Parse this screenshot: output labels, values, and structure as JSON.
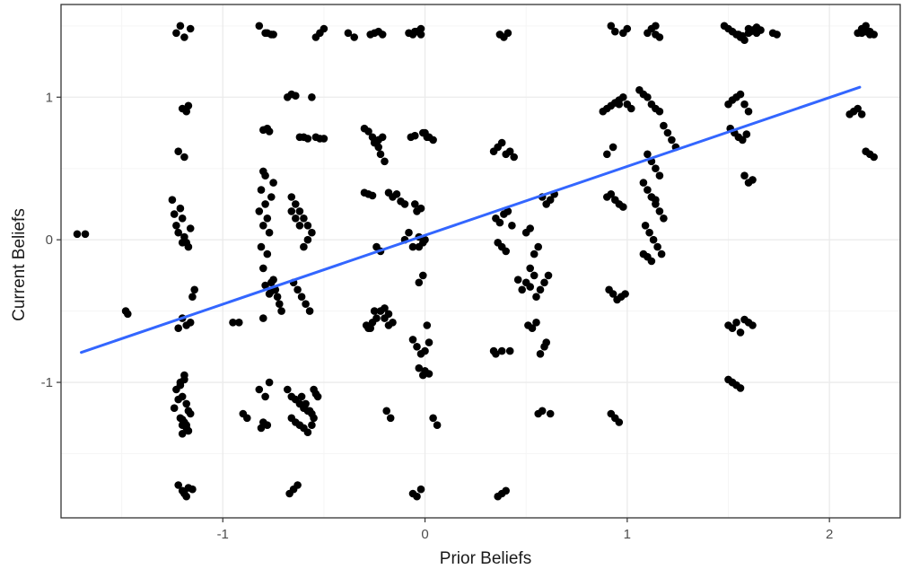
{
  "chart_data": {
    "type": "scatter",
    "title": "",
    "xlabel": "Prior Beliefs",
    "ylabel": "Current Beliefs",
    "xlim": [
      -1.8,
      2.35
    ],
    "ylim": [
      -1.95,
      1.65
    ],
    "x_ticks": [
      -1,
      0,
      1,
      2
    ],
    "x_tick_labels": [
      "-1",
      "0",
      "1",
      "2"
    ],
    "y_ticks": [
      -1,
      0,
      1
    ],
    "y_tick_labels": [
      "-1",
      "0",
      "1"
    ],
    "grid": true,
    "legend": "none",
    "colors": {
      "points": "#000000",
      "fit_line": "#3366ff",
      "grid_major": "#ebebeb",
      "grid_minor": "#f5f5f5",
      "panel_border": "#333333"
    },
    "series": [
      {
        "kind": "points",
        "x": [
          -1.72,
          -1.68,
          -1.48,
          -1.47,
          -1.25,
          -1.24,
          -1.23,
          -1.22,
          -1.21,
          -1.2,
          -1.19,
          -1.18,
          -1.17,
          -1.16,
          -1.15,
          -1.14,
          -1.2,
          -1.18,
          -1.22,
          -1.16,
          -1.19,
          -1.21,
          -1.23,
          -1.2,
          -1.18,
          -1.17,
          -1.21,
          -1.19,
          -1.2,
          -1.18,
          -1.22,
          -1.24,
          -1.16,
          -1.2,
          -1.18,
          -1.19,
          -1.21,
          -1.17,
          -1.2,
          -1.15,
          -1.22,
          -1.19,
          -1.18,
          -1.2,
          -1.17,
          -1.21,
          -1.23,
          -1.19,
          -1.16,
          -1.2,
          -1.18,
          -1.22,
          -1.19,
          -1.17,
          -1.2,
          -0.95,
          -0.92,
          -0.9,
          -0.88,
          -0.82,
          -0.79,
          -0.78,
          -0.8,
          -0.77,
          -0.81,
          -0.76,
          -0.79,
          -0.82,
          -0.78,
          -0.8,
          -0.77,
          -0.75,
          -0.79,
          -0.81,
          -0.78,
          -0.8,
          -0.76,
          -0.74,
          -0.73,
          -0.72,
          -0.71,
          -0.8,
          -0.78,
          -0.76,
          -0.75,
          -0.82,
          -0.79,
          -0.77,
          -0.8,
          -0.78,
          -0.81,
          -0.76,
          -0.79,
          -0.77,
          -0.75,
          -0.8,
          -0.68,
          -0.66,
          -0.64,
          -0.62,
          -0.6,
          -0.58,
          -0.56,
          -0.54,
          -0.52,
          -0.5,
          -0.66,
          -0.64,
          -0.62,
          -0.6,
          -0.58,
          -0.65,
          -0.63,
          -0.61,
          -0.59,
          -0.57,
          -0.68,
          -0.66,
          -0.64,
          -0.62,
          -0.6,
          -0.58,
          -0.56,
          -0.55,
          -0.54,
          -0.53,
          -0.66,
          -0.64,
          -0.62,
          -0.6,
          -0.58,
          -0.56,
          -0.55,
          -0.57,
          -0.59,
          -0.61,
          -0.63,
          -0.65,
          -0.67,
          -0.54,
          -0.52,
          -0.5,
          -0.56,
          -0.58,
          -0.6,
          -0.62,
          -0.64,
          -0.66,
          -0.38,
          -0.35,
          -0.3,
          -0.28,
          -0.26,
          -0.25,
          -0.23,
          -0.22,
          -0.2,
          -0.18,
          -0.16,
          -0.14,
          -0.12,
          -0.1,
          -0.28,
          -0.26,
          -0.24,
          -0.22,
          -0.2,
          -0.18,
          -0.27,
          -0.25,
          -0.23,
          -0.21,
          -0.19,
          -0.17,
          -0.3,
          -0.28,
          -0.26,
          -0.24,
          -0.22,
          -0.2,
          -0.18,
          -0.16,
          -0.29,
          -0.27,
          -0.25,
          -0.23,
          -0.21,
          -0.08,
          -0.06,
          -0.04,
          -0.02,
          0.0,
          0.02,
          0.04,
          -0.07,
          -0.05,
          -0.03,
          -0.01,
          0.01,
          -0.06,
          -0.04,
          -0.02,
          0.0,
          0.02,
          -0.1,
          -0.08,
          -0.06,
          -0.04,
          -0.02,
          -0.05,
          -0.03,
          -0.01,
          0.0,
          0.02,
          0.04,
          0.06,
          -0.02,
          -0.04,
          -0.06,
          -0.01,
          0.01,
          -0.03,
          -0.05,
          -0.02,
          0.0,
          -0.03,
          -0.01,
          0.34,
          0.36,
          0.38,
          0.4,
          0.42,
          0.44,
          0.35,
          0.37,
          0.39,
          0.41,
          0.43,
          0.38,
          0.36,
          0.4,
          0.34,
          0.38,
          0.42,
          0.36,
          0.38,
          0.4,
          0.37,
          0.39,
          0.41,
          0.35,
          0.5,
          0.52,
          0.54,
          0.56,
          0.58,
          0.6,
          0.62,
          0.64,
          0.55,
          0.57,
          0.59,
          0.61,
          0.51,
          0.53,
          0.55,
          0.57,
          0.59,
          0.6,
          0.62,
          0.56,
          0.58,
          0.52,
          0.54,
          0.5,
          0.48,
          0.46,
          0.52,
          0.88,
          0.9,
          0.92,
          0.94,
          0.96,
          0.98,
          1.0,
          1.02,
          0.9,
          0.92,
          0.94,
          0.96,
          0.98,
          0.91,
          0.93,
          0.95,
          0.97,
          0.99,
          0.92,
          0.94,
          0.96,
          0.98,
          1.0,
          0.92,
          0.94,
          0.96,
          0.9,
          0.93,
          1.06,
          1.08,
          1.1,
          1.12,
          1.14,
          1.16,
          1.18,
          1.2,
          1.22,
          1.24,
          1.08,
          1.1,
          1.12,
          1.14,
          1.16,
          1.18,
          1.09,
          1.11,
          1.13,
          1.15,
          1.17,
          1.1,
          1.12,
          1.14,
          1.16,
          1.1,
          1.12,
          1.14,
          1.08,
          1.1,
          1.12,
          1.14,
          1.16,
          1.12,
          1.14,
          1.48,
          1.5,
          1.52,
          1.54,
          1.56,
          1.58,
          1.6,
          1.62,
          1.64,
          1.5,
          1.52,
          1.54,
          1.56,
          1.58,
          1.6,
          1.51,
          1.53,
          1.55,
          1.57,
          1.59,
          1.5,
          1.52,
          1.54,
          1.56,
          1.58,
          1.6,
          1.62,
          1.52,
          1.54,
          1.56,
          1.58,
          1.6,
          1.62,
          1.64,
          1.66,
          1.55,
          1.57,
          1.61,
          1.6,
          1.5,
          1.52,
          1.72,
          1.74,
          2.1,
          2.12,
          2.14,
          2.16,
          2.18,
          2.2,
          2.22,
          2.14,
          2.16,
          2.18,
          2.2,
          2.22,
          2.16,
          2.18,
          2.2
        ],
        "y": [
          0.04,
          0.04,
          -0.5,
          -0.52,
          0.28,
          0.18,
          0.1,
          0.05,
          0.22,
          0.15,
          0.02,
          -0.02,
          -0.05,
          0.08,
          -0.4,
          -0.35,
          -0.55,
          -0.6,
          -0.62,
          -0.58,
          -0.95,
          -1.0,
          -1.05,
          -1.1,
          -1.15,
          -1.2,
          -1.25,
          -1.28,
          -1.3,
          -1.32,
          -1.12,
          -1.18,
          -1.22,
          -1.26,
          -1.3,
          -0.98,
          -1.02,
          -1.34,
          -1.36,
          -1.75,
          -1.72,
          -1.78,
          -1.8,
          -1.76,
          -1.74,
          1.5,
          1.45,
          1.42,
          1.48,
          0.92,
          0.9,
          0.62,
          0.58,
          0.94,
          -0.02,
          -0.58,
          -0.58,
          -1.22,
          -1.25,
          1.5,
          1.45,
          0.78,
          0.77,
          0.76,
          0.35,
          0.3,
          0.25,
          0.2,
          0.15,
          0.1,
          0.05,
          0.4,
          0.45,
          -0.05,
          -0.1,
          -0.2,
          -0.3,
          -0.35,
          -0.4,
          -0.45,
          -0.5,
          -0.55,
          1.45,
          1.44,
          1.44,
          -1.05,
          -1.1,
          -1.0,
          -1.28,
          -1.3,
          -1.32,
          -0.36,
          -0.32,
          -0.38,
          -0.28,
          0.48,
          1.0,
          1.02,
          1.01,
          0.72,
          0.72,
          0.71,
          1.0,
          0.72,
          0.71,
          0.71,
          0.3,
          0.25,
          0.2,
          0.15,
          0.1,
          -0.3,
          -0.35,
          -0.4,
          -0.45,
          -0.5,
          -1.05,
          -1.1,
          -1.12,
          -1.15,
          -1.18,
          -1.2,
          -1.22,
          -1.05,
          -1.08,
          -1.1,
          -1.25,
          -1.28,
          -1.3,
          -1.32,
          -1.35,
          -1.3,
          -1.25,
          -1.2,
          -1.15,
          -1.1,
          -1.72,
          -1.75,
          -1.78,
          1.42,
          1.45,
          1.48,
          0.05,
          0.0,
          -0.05,
          0.1,
          0.15,
          0.2,
          1.45,
          1.42,
          0.78,
          0.76,
          0.72,
          0.68,
          0.65,
          0.6,
          0.55,
          0.33,
          0.3,
          0.32,
          0.27,
          0.25,
          -0.62,
          -0.58,
          -0.55,
          -0.5,
          -0.48,
          -0.52,
          1.44,
          1.45,
          1.46,
          1.44,
          -1.2,
          -1.25,
          0.33,
          0.32,
          0.31,
          -0.05,
          -0.08,
          -0.55,
          -0.6,
          -0.58,
          -0.6,
          -0.62,
          -0.5,
          0.7,
          0.72,
          1.45,
          1.44,
          1.46,
          1.48,
          0.75,
          0.72,
          0.7,
          0.72,
          0.73,
          -0.3,
          -0.25,
          -0.6,
          -0.7,
          -0.75,
          -0.8,
          -0.78,
          -0.72,
          0.0,
          0.05,
          -0.05,
          0.2,
          0.22,
          0.25,
          -0.9,
          -0.95,
          -0.92,
          -0.94,
          -1.25,
          -1.3,
          -1.75,
          -1.8,
          -1.78,
          0.75,
          0.72,
          0.02,
          1.46,
          1.44,
          0.0,
          -0.05,
          -0.02,
          0.62,
          0.65,
          0.68,
          0.6,
          0.62,
          0.58,
          0.15,
          0.12,
          0.18,
          0.2,
          0.1,
          -0.05,
          -0.02,
          -0.08,
          -0.78,
          -0.78,
          -0.78,
          -1.8,
          -1.78,
          -1.76,
          1.44,
          1.42,
          1.45,
          -0.8,
          0.05,
          0.08,
          -0.1,
          -0.05,
          0.3,
          0.25,
          0.28,
          0.32,
          -0.4,
          -0.35,
          -0.3,
          -0.25,
          -0.6,
          -0.62,
          -0.58,
          -0.8,
          -0.75,
          -0.72,
          -1.22,
          -1.22,
          -1.2,
          -0.2,
          -0.25,
          -0.3,
          -0.35,
          -0.28,
          -0.33,
          0.9,
          0.92,
          0.94,
          0.96,
          0.98,
          1.0,
          0.95,
          0.92,
          0.3,
          0.32,
          0.28,
          0.25,
          0.23,
          -0.35,
          -0.38,
          -0.42,
          -0.4,
          -0.38,
          -1.22,
          -1.25,
          -1.28,
          1.45,
          1.48,
          1.5,
          1.46,
          0.95,
          0.6,
          0.65,
          1.05,
          1.02,
          1.0,
          0.95,
          0.92,
          0.9,
          0.8,
          0.75,
          0.7,
          0.65,
          0.4,
          0.35,
          0.3,
          0.25,
          0.2,
          0.15,
          0.1,
          0.05,
          0.0,
          -0.05,
          -0.1,
          0.6,
          0.55,
          0.5,
          0.45,
          1.45,
          1.48,
          1.5,
          -0.1,
          -0.12,
          -0.15,
          1.44,
          1.42,
          0.3,
          0.28,
          1.5,
          1.48,
          1.46,
          1.44,
          1.42,
          1.4,
          1.45,
          1.47,
          1.49,
          0.95,
          0.98,
          1.0,
          1.02,
          0.95,
          0.9,
          0.78,
          0.75,
          0.72,
          0.7,
          0.74,
          -0.6,
          -0.62,
          -0.58,
          -0.65,
          -0.56,
          -0.58,
          -0.6,
          -1.0,
          -1.02,
          -1.04,
          0.45,
          0.4,
          0.42,
          1.45,
          1.47,
          1.44,
          1.43,
          1.46,
          1.48,
          -0.98,
          -1.0,
          1.45,
          1.44,
          0.88,
          0.9,
          1.45,
          1.48,
          1.5,
          1.46,
          1.44,
          0.92,
          0.88,
          0.62,
          0.6,
          0.58,
          1.45,
          1.46,
          1.44
        ]
      },
      {
        "kind": "fit_line",
        "x": [
          -1.7,
          2.15
        ],
        "y": [
          -0.79,
          1.07
        ]
      }
    ]
  }
}
